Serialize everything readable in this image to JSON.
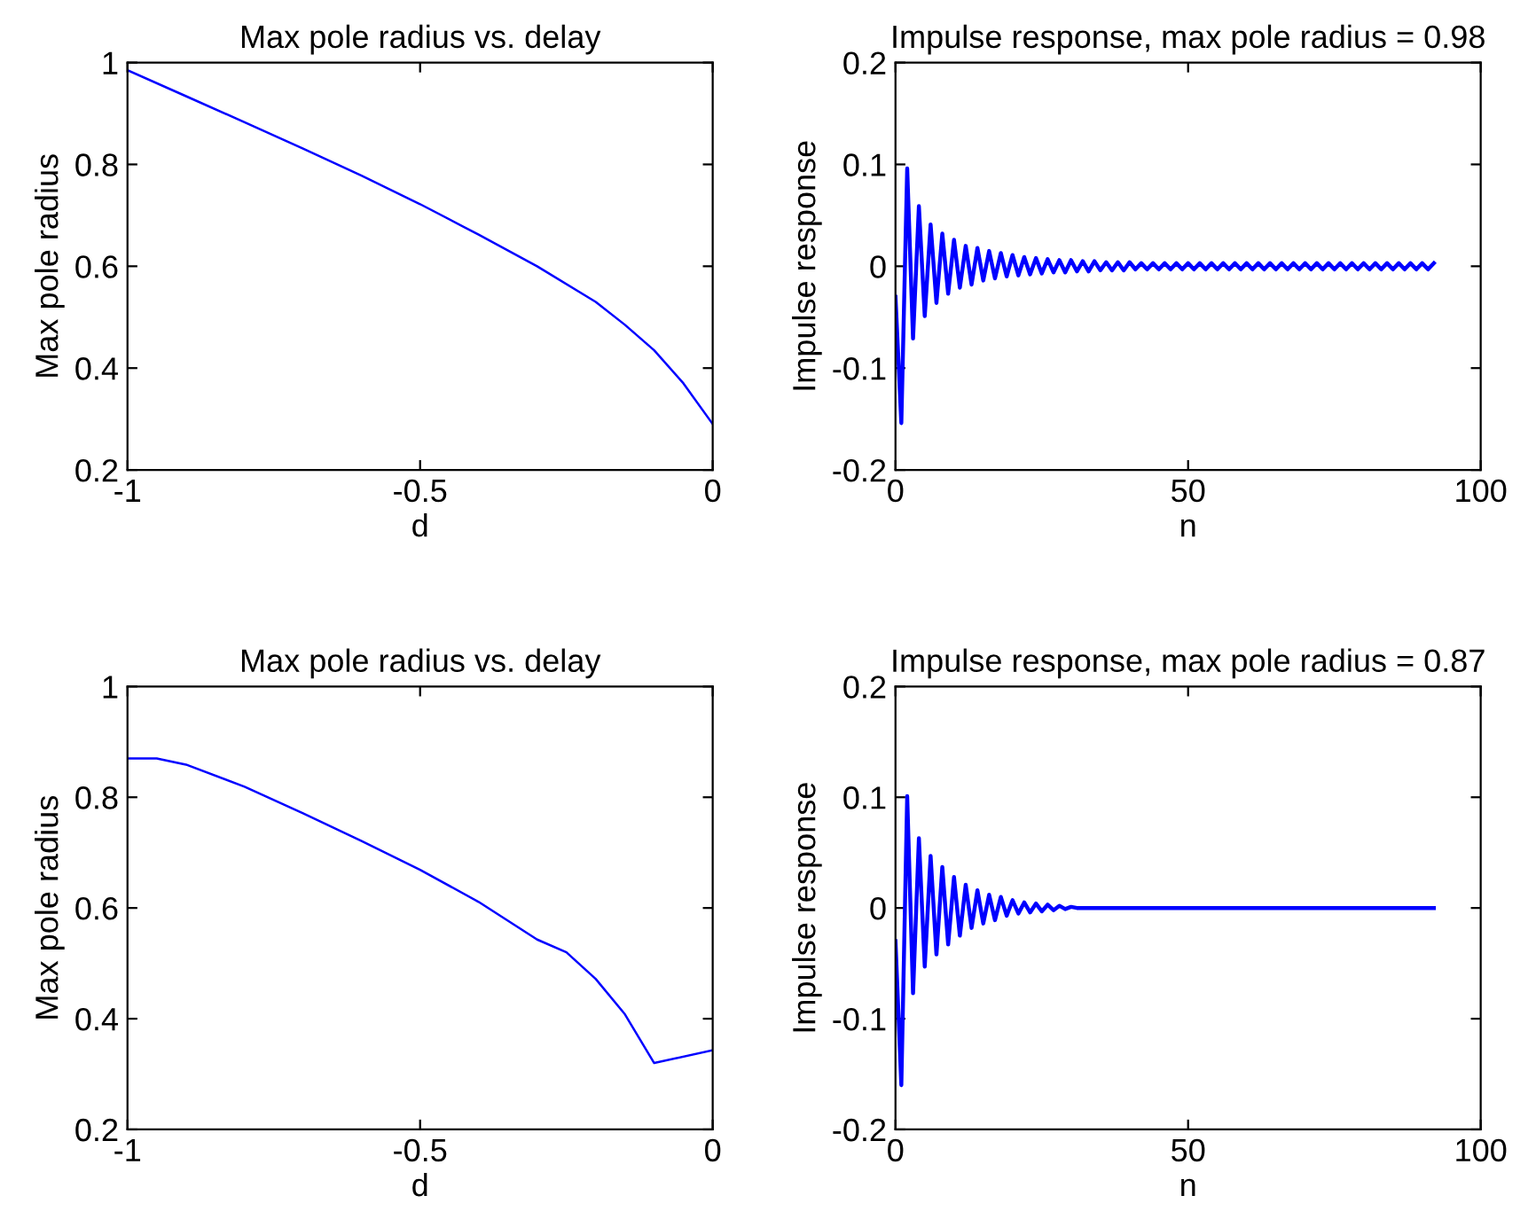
{
  "chart_data": [
    {
      "type": "line",
      "title": "Max pole radius vs. delay",
      "xlabel": "d",
      "ylabel": "Max pole radius",
      "xlim": [
        -1,
        0
      ],
      "ylim": [
        0.2,
        1
      ],
      "xticks": [
        -1,
        -0.5,
        0
      ],
      "yticks": [
        0.2,
        0.4,
        0.6,
        0.8,
        1
      ],
      "series": [
        {
          "color": "#0000ff",
          "x": [
            -1,
            -0.9,
            -0.8,
            -0.7,
            -0.6,
            -0.5,
            -0.4,
            -0.3,
            -0.2,
            -0.15,
            -0.1,
            -0.05,
            0
          ],
          "values": [
            0.985,
            0.934,
            0.883,
            0.831,
            0.778,
            0.722,
            0.662,
            0.6,
            0.53,
            0.485,
            0.435,
            0.37,
            0.29
          ]
        }
      ]
    },
    {
      "type": "line",
      "title": "Impulse response, max pole radius = 0.98",
      "xlabel": "n",
      "ylabel": "Impulse response",
      "xlim": [
        0,
        100
      ],
      "ylim": [
        -0.2,
        0.2
      ],
      "xticks": [
        0,
        50,
        100
      ],
      "yticks": [
        -0.2,
        -0.1,
        0,
        0.1,
        0.2
      ],
      "series": [
        {
          "color": "#0000ff",
          "x": [
            0,
            1,
            2,
            3,
            4,
            5,
            6,
            7,
            8,
            9,
            10,
            11,
            12,
            13,
            14,
            15,
            16,
            17,
            18,
            19,
            20,
            21,
            22,
            23,
            24,
            25,
            26,
            27,
            28,
            29,
            30,
            31,
            32,
            33,
            34,
            35,
            36,
            37,
            38,
            39,
            40,
            41,
            42,
            43,
            44,
            45,
            46,
            47,
            48,
            49,
            50,
            51,
            52,
            53,
            54,
            55,
            56,
            57,
            58,
            59,
            60,
            61,
            62,
            63,
            64,
            65,
            66,
            67,
            68,
            69,
            70,
            71,
            72,
            73,
            74,
            75,
            76,
            77,
            78,
            79,
            80,
            81,
            82,
            83,
            84,
            85,
            86,
            87,
            88,
            89,
            90,
            91,
            92
          ],
          "values": [
            -0.03,
            -0.154,
            0.096,
            -0.071,
            0.059,
            -0.049,
            0.041,
            -0.036,
            0.032,
            -0.027,
            0.026,
            -0.021,
            0.02,
            -0.018,
            0.018,
            -0.014,
            0.015,
            -0.012,
            0.013,
            -0.01,
            0.011,
            -0.009,
            0.009,
            -0.008,
            0.008,
            -0.007,
            0.007,
            -0.006,
            0.006,
            -0.006,
            0.006,
            -0.005,
            0.005,
            -0.005,
            0.005,
            -0.004,
            0.004,
            -0.004,
            0.004,
            -0.004,
            0.004,
            -0.003,
            0.003,
            -0.003,
            0.003,
            -0.003,
            0.003,
            -0.003,
            0.003,
            -0.003,
            0.003,
            -0.003,
            0.003,
            -0.003,
            0.003,
            -0.003,
            0.003,
            -0.003,
            0.003,
            -0.003,
            0.003,
            -0.003,
            0.003,
            -0.003,
            0.003,
            -0.003,
            0.003,
            -0.003,
            0.003,
            -0.003,
            0.003,
            -0.003,
            0.003,
            -0.003,
            0.003,
            -0.003,
            0.003,
            -0.003,
            0.003,
            -0.003,
            0.003,
            -0.003,
            0.003,
            -0.003,
            0.003,
            -0.003,
            0.003,
            -0.003,
            0.003,
            -0.003,
            0.003,
            -0.003,
            0.003
          ]
        }
      ]
    },
    {
      "type": "line",
      "title": "Max pole radius vs. delay",
      "xlabel": "d",
      "ylabel": "Max pole radius",
      "xlim": [
        -1,
        0
      ],
      "ylim": [
        0.2,
        1
      ],
      "xticks": [
        -1,
        -0.5,
        0
      ],
      "yticks": [
        0.2,
        0.4,
        0.6,
        0.8,
        1
      ],
      "series": [
        {
          "color": "#0000ff",
          "x": [
            -1,
            -0.95,
            -0.9,
            -0.8,
            -0.7,
            -0.6,
            -0.5,
            -0.4,
            -0.3,
            -0.25,
            -0.2,
            -0.15,
            -0.1,
            0
          ],
          "values": [
            0.87,
            0.87,
            0.859,
            0.819,
            0.771,
            0.721,
            0.669,
            0.611,
            0.543,
            0.52,
            0.472,
            0.408,
            0.32,
            0.343
          ]
        }
      ]
    },
    {
      "type": "line",
      "title": "Impulse response, max pole radius = 0.87",
      "xlabel": "n",
      "ylabel": "Impulse response",
      "xlim": [
        0,
        100
      ],
      "ylim": [
        -0.2,
        0.2
      ],
      "xticks": [
        0,
        50,
        100
      ],
      "yticks": [
        -0.2,
        -0.1,
        0,
        0.1,
        0.2
      ],
      "series": [
        {
          "color": "#0000ff",
          "x": [
            0,
            1,
            2,
            3,
            4,
            5,
            6,
            7,
            8,
            9,
            10,
            11,
            12,
            13,
            14,
            15,
            16,
            17,
            18,
            19,
            20,
            21,
            22,
            23,
            24,
            25,
            26,
            27,
            28,
            29,
            30,
            31,
            32,
            33,
            34,
            35,
            36,
            37,
            38,
            39,
            40,
            41,
            42,
            43,
            44,
            45,
            46,
            47,
            48,
            49,
            50,
            51,
            52,
            53,
            54,
            55,
            56,
            57,
            58,
            59,
            60,
            61,
            62,
            63,
            64,
            65,
            66,
            67,
            68,
            69,
            70,
            71,
            72,
            73,
            74,
            75,
            76,
            77,
            78,
            79,
            80,
            81,
            82,
            83,
            84,
            85,
            86,
            87,
            88,
            89,
            90,
            91,
            92
          ],
          "values": [
            -0.03,
            -0.16,
            0.101,
            -0.077,
            0.063,
            -0.053,
            0.047,
            -0.042,
            0.037,
            -0.033,
            0.028,
            -0.025,
            0.021,
            -0.018,
            0.016,
            -0.014,
            0.012,
            -0.011,
            0.01,
            -0.007,
            0.007,
            -0.005,
            0.005,
            -0.004,
            0.004,
            -0.003,
            0.003,
            -0.002,
            0.002,
            -0.001,
            0.001,
            0,
            0,
            0,
            0,
            0,
            0,
            0,
            0,
            0,
            0,
            0,
            0,
            0,
            0,
            0,
            0,
            0,
            0,
            0,
            0,
            0,
            0,
            0,
            0,
            0,
            0,
            0,
            0,
            0,
            0,
            0,
            0,
            0,
            0,
            0,
            0,
            0,
            0,
            0,
            0,
            0,
            0,
            0,
            0,
            0,
            0,
            0,
            0,
            0,
            0,
            0,
            0,
            0,
            0,
            0,
            0,
            0,
            0,
            0,
            0,
            0,
            0
          ]
        }
      ]
    }
  ]
}
